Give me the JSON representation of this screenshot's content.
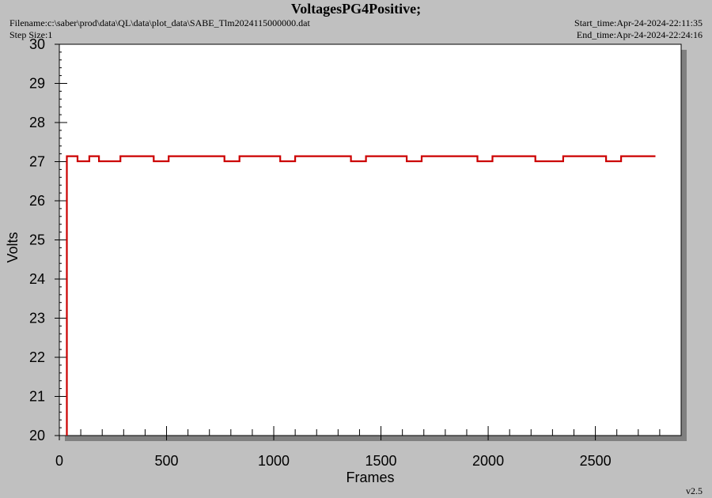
{
  "header": {
    "title": "VoltagesPG4Positive;",
    "filename": "Filename:c:\\saber\\prod\\data\\QL\\data\\plot_data\\SABE_Tlm2024115000000.dat",
    "step_size": "Step Size:1",
    "start_time": "Start_time:Apr-24-2024-22:11:35",
    "end_time": "End_time:Apr-24-2024-22:24:16",
    "version": "v2.5"
  },
  "colors": {
    "background": "#c0c0c0",
    "plot_area": "#ffffff",
    "series": "#cc0000",
    "shadow": "#808080"
  },
  "chart_data": {
    "type": "line",
    "title": "VoltagesPG4Positive;",
    "xlabel": "Frames",
    "ylabel": "Volts",
    "xlim": [
      0,
      2900
    ],
    "ylim": [
      20,
      30
    ],
    "x_ticks": [
      0,
      500,
      1000,
      1500,
      2000,
      2500
    ],
    "x_tick_labels": [
      "0",
      "500",
      "1000",
      "1500",
      "2000",
      "2500"
    ],
    "y_ticks": [
      20,
      21,
      22,
      23,
      24,
      25,
      26,
      27,
      28,
      29,
      30
    ],
    "y_tick_labels": [
      "20",
      "21",
      "22",
      "23",
      "24",
      "25",
      "26",
      "27",
      "28",
      "29",
      "30"
    ],
    "grid": false,
    "series": [
      {
        "x": [
          35,
          35,
          85,
          85,
          140,
          140,
          185,
          185,
          285,
          285,
          440,
          440,
          510,
          510,
          770,
          770,
          840,
          840,
          1030,
          1030,
          1100,
          1100,
          1360,
          1360,
          1430,
          1430,
          1620,
          1620,
          1690,
          1690,
          1950,
          1950,
          2020,
          2020,
          2220,
          2220,
          2350,
          2350,
          2550,
          2550,
          2620,
          2620,
          2780
        ],
        "y": [
          20,
          27.14,
          27.14,
          27.01,
          27.01,
          27.14,
          27.14,
          27.01,
          27.01,
          27.14,
          27.14,
          27.01,
          27.01,
          27.14,
          27.14,
          27.01,
          27.01,
          27.14,
          27.14,
          27.01,
          27.01,
          27.14,
          27.14,
          27.01,
          27.01,
          27.14,
          27.14,
          27.01,
          27.01,
          27.14,
          27.14,
          27.01,
          27.01,
          27.14,
          27.14,
          27.01,
          27.01,
          27.14,
          27.14,
          27.01,
          27.01,
          27.14,
          27.14
        ]
      }
    ]
  }
}
